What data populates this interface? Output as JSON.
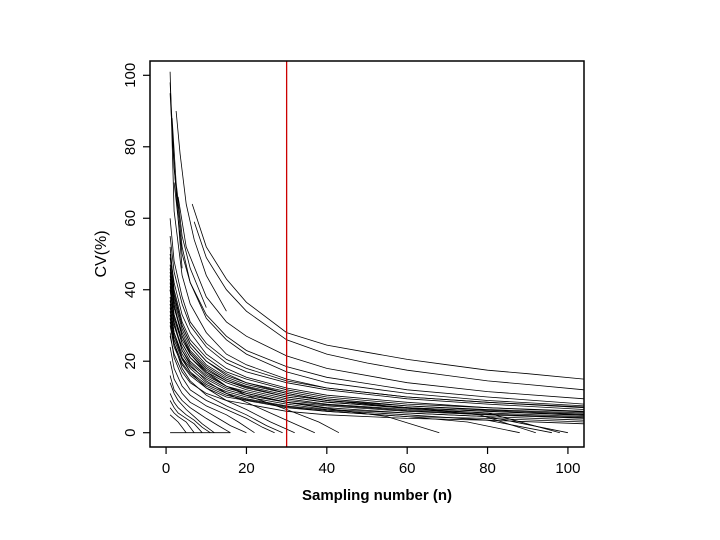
{
  "chart_data": {
    "type": "line",
    "title": "",
    "xlabel": "Sampling number (n)",
    "ylabel": "CV(%)",
    "xlim": [
      -4,
      104
    ],
    "ylim": [
      -4,
      104
    ],
    "xticks": [
      0,
      20,
      40,
      60,
      80,
      100
    ],
    "yticks": [
      0,
      20,
      40,
      60,
      80,
      100
    ],
    "x_tick_labels": [
      "0",
      "20",
      "40",
      "60",
      "80",
      "100"
    ],
    "y_tick_labels": [
      "0",
      "20",
      "40",
      "60",
      "80",
      "100"
    ],
    "grid": false,
    "legend": "none",
    "line_color": "#000000",
    "reference_line": {
      "orientation": "vertical",
      "x": 30,
      "color": "#cc0000"
    },
    "series": [
      {
        "x": [
          6.5,
          10,
          15,
          20,
          30,
          40,
          50,
          60,
          70,
          80,
          90,
          104
        ],
        "y": [
          64,
          52,
          43,
          36.5,
          28,
          24.5,
          22.5,
          20.5,
          19,
          17.5,
          16.5,
          15
        ]
      },
      {
        "x": [
          7,
          10,
          15,
          20,
          30,
          40,
          50,
          60,
          70,
          80,
          90,
          104
        ],
        "y": [
          59,
          49,
          40,
          34,
          26,
          22,
          19.5,
          17.5,
          16,
          14.5,
          13.5,
          12
        ]
      },
      {
        "x": [
          3,
          5,
          10,
          15,
          20,
          30,
          40,
          60,
          80,
          104
        ],
        "y": [
          66,
          52,
          38,
          31,
          27,
          21.5,
          18,
          14,
          11.5,
          9.5
        ]
      },
      {
        "x": [
          2,
          4,
          6,
          10,
          15,
          20,
          30,
          40,
          60,
          80,
          104
        ],
        "y": [
          70,
          50,
          42,
          33,
          27,
          23,
          18.5,
          15.5,
          12,
          10,
          8
        ]
      },
      {
        "x": [
          1,
          2,
          4,
          6,
          10,
          15,
          20,
          30,
          40,
          60,
          80,
          104
        ],
        "y": [
          95,
          74,
          52,
          42,
          32,
          26,
          22,
          17,
          14,
          11,
          9,
          7.5
        ]
      },
      {
        "x": [
          1,
          2,
          4,
          6,
          10,
          15,
          20,
          30,
          40,
          60,
          80,
          104
        ],
        "y": [
          101,
          62,
          44,
          36,
          28,
          22,
          19,
          15,
          12.5,
          10,
          8.5,
          7
        ]
      },
      {
        "x": [
          1,
          2,
          4,
          6,
          10,
          15,
          20,
          30,
          40,
          60,
          80,
          104
        ],
        "y": [
          55,
          45,
          36,
          30,
          24,
          19.5,
          17,
          14,
          12,
          9.5,
          8,
          6.5
        ]
      },
      {
        "x": [
          1,
          2,
          4,
          6,
          10,
          15,
          20,
          30,
          40,
          60,
          80,
          104
        ],
        "y": [
          50,
          42,
          33,
          28,
          22,
          18,
          15.5,
          12.5,
          10.5,
          8.5,
          7,
          6
        ]
      },
      {
        "x": [
          1,
          2,
          4,
          6,
          10,
          15,
          20,
          30,
          40,
          60,
          80,
          104
        ],
        "y": [
          47,
          38,
          30,
          25,
          20,
          16.5,
          14,
          11.5,
          9.5,
          7.5,
          6.5,
          5.5
        ]
      },
      {
        "x": [
          1,
          2,
          4,
          6,
          10,
          15,
          20,
          30,
          40,
          60,
          80,
          104
        ],
        "y": [
          43,
          35,
          28,
          23,
          18.5,
          15,
          13,
          10.5,
          9,
          7,
          6,
          5
        ]
      },
      {
        "x": [
          1,
          2,
          4,
          6,
          10,
          15,
          20,
          30,
          40,
          60,
          80,
          104
        ],
        "y": [
          40,
          32,
          25,
          21,
          17,
          14,
          12,
          9.5,
          8,
          6.5,
          5.5,
          4.5
        ]
      },
      {
        "x": [
          1,
          2,
          4,
          6,
          10,
          15,
          20,
          30,
          40,
          60,
          80,
          104
        ],
        "y": [
          37,
          30,
          23,
          19.5,
          15.5,
          12.5,
          11,
          8.5,
          7.5,
          6,
          5,
          4
        ]
      },
      {
        "x": [
          1,
          2,
          4,
          6,
          10,
          15,
          20,
          30,
          40,
          60,
          80,
          104
        ],
        "y": [
          34,
          27,
          21,
          18,
          14,
          11.5,
          10,
          8,
          6.5,
          5.5,
          4.5,
          3.5
        ]
      },
      {
        "x": [
          1,
          2,
          4,
          6,
          10,
          15,
          20,
          30,
          40,
          60,
          80,
          104
        ],
        "y": [
          30,
          24,
          19,
          16,
          12.5,
          10,
          9,
          7,
          6,
          4.5,
          4,
          3
        ]
      },
      {
        "x": [
          1,
          2,
          4,
          6,
          10,
          15,
          20,
          30,
          40,
          60,
          80,
          104
        ],
        "y": [
          27,
          22,
          17,
          14,
          11,
          9,
          8,
          6,
          5,
          4,
          3.5,
          2.5
        ]
      },
      {
        "x": [
          1,
          2,
          4,
          6,
          10,
          15,
          20,
          30,
          40,
          60,
          80,
          104
        ],
        "y": [
          45,
          37,
          29,
          24,
          19,
          15.5,
          13.5,
          11,
          9,
          7.5,
          6.3,
          5.2
        ]
      },
      {
        "x": [
          1,
          2,
          4,
          6,
          10,
          15,
          20,
          30,
          40,
          60,
          80,
          104
        ],
        "y": [
          60,
          48,
          38,
          31,
          25,
          20.5,
          18,
          14.5,
          12.5,
          10,
          8.5,
          7.2
        ]
      },
      {
        "x": [
          1,
          2,
          4,
          6,
          10,
          15,
          20,
          30,
          40,
          60,
          80,
          104
        ],
        "y": [
          41,
          33,
          26,
          22,
          17.5,
          14.5,
          12.5,
          10,
          8.5,
          7,
          6,
          4.8
        ]
      },
      {
        "x": [
          1,
          2,
          4,
          6,
          10,
          15,
          20,
          30,
          40,
          60,
          80,
          104
        ],
        "y": [
          52,
          40,
          31,
          26,
          21,
          17,
          15,
          12,
          10,
          8,
          7,
          5.8
        ]
      },
      {
        "x": [
          1,
          2,
          4,
          6,
          10,
          15,
          20,
          30,
          40,
          60,
          80,
          104
        ],
        "y": [
          38,
          30,
          24,
          20,
          16,
          13,
          11.5,
          9,
          7.8,
          6.2,
          5.2,
          4.2
        ]
      },
      {
        "x": [
          1,
          2,
          4,
          6,
          10,
          15,
          20,
          30,
          40,
          60,
          80,
          100
        ],
        "y": [
          35,
          28,
          22,
          18.5,
          15,
          12,
          10.5,
          8.5,
          7,
          5.5,
          4.5,
          0
        ]
      },
      {
        "x": [
          1,
          2,
          4,
          6,
          10,
          15,
          20,
          30,
          40,
          60,
          80,
          96
        ],
        "y": [
          33,
          26,
          20.5,
          17,
          13.5,
          11,
          9.5,
          7.5,
          6.3,
          5,
          3.5,
          0
        ]
      },
      {
        "x": [
          1,
          2,
          4,
          6,
          10,
          15,
          20,
          30,
          40,
          60,
          75,
          88
        ],
        "y": [
          31,
          25,
          19.5,
          16.5,
          13,
          10.5,
          9.2,
          7.3,
          6,
          4.5,
          3,
          0
        ]
      },
      {
        "x": [
          1,
          2,
          4,
          6,
          10,
          15,
          20,
          30,
          40,
          55,
          68
        ],
        "y": [
          42,
          33,
          25,
          21,
          16.5,
          13,
          11,
          8.5,
          6.8,
          4.5,
          0
        ]
      },
      {
        "x": [
          1,
          2,
          4,
          6,
          10,
          15,
          20,
          30,
          40,
          60,
          78,
          92
        ],
        "y": [
          49,
          39,
          30,
          25,
          20,
          16,
          14,
          11,
          9,
          7,
          5,
          0
        ]
      },
      {
        "x": [
          1,
          2,
          4,
          6,
          10,
          15,
          20,
          30,
          40,
          60,
          80,
          98
        ],
        "y": [
          44,
          35,
          27,
          22.5,
          18,
          14.5,
          12.8,
          10,
          8.6,
          6.8,
          5.5,
          0
        ]
      },
      {
        "x": [
          1,
          2,
          4,
          6,
          10,
          15,
          20,
          30,
          38,
          43
        ],
        "y": [
          46,
          36,
          27,
          22,
          17,
          13,
          10.5,
          6.5,
          3,
          0
        ]
      },
      {
        "x": [
          1,
          2,
          4,
          6,
          10,
          15,
          20,
          25,
          30,
          37
        ],
        "y": [
          40,
          31,
          23,
          19,
          14.5,
          11,
          8.5,
          6,
          3.5,
          0
        ]
      },
      {
        "x": [
          1,
          2,
          4,
          6,
          10,
          15,
          20,
          26,
          32
        ],
        "y": [
          36,
          28,
          21,
          17,
          12.5,
          9,
          6.5,
          3,
          0
        ]
      },
      {
        "x": [
          1,
          2,
          4,
          6,
          10,
          15,
          20,
          25,
          29
        ],
        "y": [
          32,
          25,
          18,
          14.5,
          10.5,
          7.5,
          5,
          2,
          0
        ]
      },
      {
        "x": [
          1,
          2,
          4,
          6,
          10,
          15,
          20,
          24,
          27
        ],
        "y": [
          28,
          21,
          15.5,
          12,
          9,
          6.5,
          4,
          1.5,
          0
        ]
      },
      {
        "x": [
          1,
          2,
          4,
          6,
          10,
          15,
          18,
          22
        ],
        "y": [
          24,
          18,
          13,
          10.5,
          7.5,
          5,
          3,
          0
        ]
      },
      {
        "x": [
          1,
          2,
          4,
          6,
          10,
          13,
          16,
          20
        ],
        "y": [
          20,
          15,
          11,
          8.5,
          6,
          4,
          2,
          0
        ]
      },
      {
        "x": [
          1,
          2,
          4,
          6,
          8,
          10,
          13,
          16
        ],
        "y": [
          16,
          12,
          9,
          7,
          5.5,
          4,
          2,
          0
        ]
      },
      {
        "x": [
          1,
          2,
          3,
          5,
          7,
          9,
          12
        ],
        "y": [
          14,
          11,
          9,
          6.5,
          4.5,
          2.5,
          0
        ]
      },
      {
        "x": [
          1,
          2,
          3,
          5,
          7,
          9,
          11
        ],
        "y": [
          11,
          8.5,
          7,
          5,
          3.5,
          1.5,
          0
        ]
      },
      {
        "x": [
          1,
          2,
          3,
          5,
          7,
          9
        ],
        "y": [
          9,
          7,
          5.5,
          4,
          2.5,
          0
        ]
      },
      {
        "x": [
          1,
          2,
          3,
          5,
          7
        ],
        "y": [
          7,
          5.5,
          4.5,
          3,
          0
        ]
      },
      {
        "x": [
          1,
          2,
          3,
          4,
          5
        ],
        "y": [
          5,
          4,
          3,
          1.5,
          0
        ]
      },
      {
        "x": [
          1,
          16
        ],
        "y": [
          0,
          0
        ]
      },
      {
        "x": [
          1,
          2,
          3,
          4
        ],
        "y": [
          98,
          75,
          60,
          46
        ]
      },
      {
        "x": [
          1.5,
          2.5,
          4,
          6,
          10
        ],
        "y": [
          88,
          70,
          55,
          46,
          35
        ]
      },
      {
        "x": [
          2.5,
          3.5,
          5,
          7,
          10,
          15
        ],
        "y": [
          90,
          78,
          64,
          54,
          44,
          34
        ]
      }
    ]
  }
}
